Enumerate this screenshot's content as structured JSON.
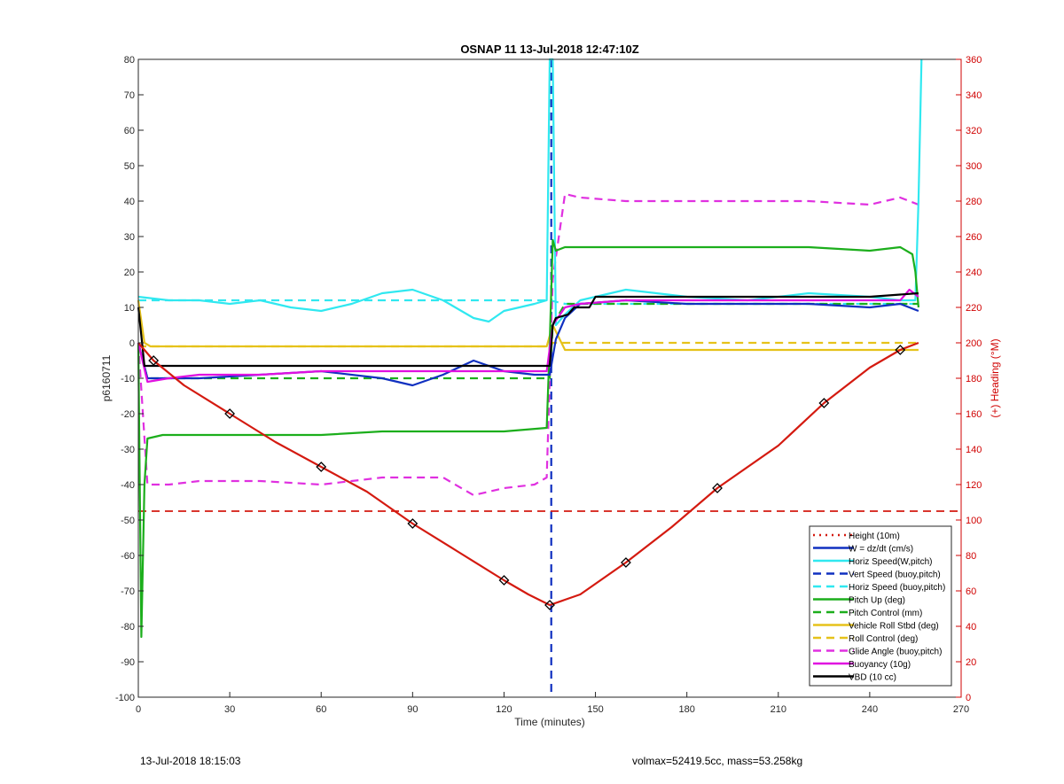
{
  "footer": {
    "left": "13-Jul-2018 18:15:03",
    "right": "volmax=52419.5cc, mass=53.258kg"
  },
  "colors": {
    "axis_left": "#000000",
    "axis_right": "#d00000",
    "height": "#d41a10",
    "w": "#1030c0",
    "horiz": "#30e8f0",
    "pitch": "#1cae1c",
    "roll": "#e6c21a",
    "glide": "#e030e0",
    "buoy": "#e010e0",
    "vbd": "#000000"
  },
  "chart_data": {
    "type": "line",
    "title": "OSNAP 11 13-Jul-2018 12:47:10Z",
    "xlabel": "Time (minutes)",
    "ylabel": "p6160711",
    "y2label": "(+) Heading (°M)",
    "xlim": [
      0,
      270
    ],
    "ylim": [
      -100,
      80
    ],
    "y2lim": [
      0,
      360
    ],
    "xticks": [
      0,
      30,
      60,
      90,
      120,
      150,
      180,
      210,
      240,
      270
    ],
    "yticks": [
      -100,
      -90,
      -80,
      -70,
      -60,
      -50,
      -40,
      -30,
      -20,
      -10,
      0,
      10,
      20,
      30,
      40,
      50,
      60,
      70,
      80
    ],
    "y2ticks": [
      0,
      20,
      40,
      60,
      80,
      100,
      120,
      140,
      160,
      180,
      200,
      220,
      240,
      260,
      280,
      300,
      320,
      340,
      360
    ],
    "grid": false,
    "legend_position": "bottom-right",
    "reference_lines": [
      {
        "orientation": "vertical",
        "x": 135.5,
        "style": "dashed",
        "color_key": "w"
      },
      {
        "orientation": "horizontal",
        "y": -47.5,
        "style": "dashed",
        "color_key": "height"
      }
    ],
    "series": [
      {
        "name": "Height (10m)",
        "style": "line-dots",
        "color_key": "height",
        "x": [
          0,
          5,
          15,
          30,
          45,
          60,
          75,
          90,
          105,
          120,
          128,
          135,
          145,
          160,
          175,
          190,
          210,
          225,
          240,
          250,
          256
        ],
        "y": [
          0,
          -5,
          -12,
          -20,
          -28,
          -35,
          -42,
          -51,
          -59,
          -67,
          -71,
          -74,
          -71,
          -62,
          -52,
          -41,
          -29,
          -17,
          -7,
          -2,
          0
        ]
      },
      {
        "name": "W = dz/dt (cm/s)",
        "style": "solid",
        "color_key": "w",
        "x": [
          0,
          3,
          10,
          20,
          40,
          60,
          80,
          90,
          100,
          110,
          120,
          130,
          135,
          137,
          140,
          145,
          160,
          180,
          200,
          220,
          240,
          250,
          256
        ],
        "y": [
          0,
          -10,
          -10,
          -10,
          -9,
          -8,
          -10,
          -12,
          -9,
          -5,
          -8,
          -9,
          -9,
          1,
          7,
          11,
          12,
          11,
          11,
          11,
          10,
          11,
          9
        ]
      },
      {
        "name": "Horiz Speed(W,pitch)",
        "style": "solid",
        "color_key": "horiz",
        "x": [
          0,
          10,
          20,
          30,
          40,
          50,
          60,
          70,
          80,
          90,
          100,
          110,
          115,
          120,
          125,
          130,
          134,
          135,
          136,
          137,
          140,
          145,
          160,
          180,
          200,
          220,
          240,
          250,
          255,
          256,
          257
        ],
        "y": [
          13,
          12,
          12,
          11,
          12,
          10,
          9,
          11,
          14,
          15,
          12,
          7,
          6,
          9,
          10,
          11,
          12,
          80,
          80,
          5,
          8,
          12,
          15,
          13,
          12,
          14,
          13,
          12,
          12,
          40,
          80
        ]
      },
      {
        "name": "Vert Speed (buoy,pitch)",
        "style": "dashed",
        "color_key": "w",
        "x": [
          135.5,
          135.5
        ],
        "y": [
          -100,
          80
        ]
      },
      {
        "name": "Horiz Speed (buoy,pitch)",
        "style": "dashed",
        "color_key": "horiz",
        "x": [
          0,
          135,
          140,
          255
        ],
        "y": [
          12,
          12,
          11,
          11
        ]
      },
      {
        "name": "Pitch Up (deg)",
        "style": "solid",
        "color_key": "pitch",
        "x": [
          0,
          1,
          2,
          3,
          8,
          20,
          40,
          60,
          80,
          100,
          120,
          134,
          135,
          136,
          137,
          140,
          160,
          180,
          200,
          220,
          240,
          250,
          254,
          255,
          256
        ],
        "y": [
          0,
          -83,
          -40,
          -27,
          -26,
          -26,
          -26,
          -26,
          -25,
          -25,
          -25,
          -24,
          0,
          29,
          26,
          27,
          27,
          27,
          27,
          27,
          26,
          27,
          25,
          20,
          10
        ]
      },
      {
        "name": "Pitch Control (mm)",
        "style": "dashed",
        "color_key": "pitch",
        "x": [
          0,
          3,
          135,
          136,
          140,
          256
        ],
        "y": [
          0,
          -10,
          -10,
          5,
          11,
          11
        ]
      },
      {
        "name": "Vehicle Roll Stbd (deg)",
        "style": "solid",
        "color_key": "roll",
        "x": [
          0,
          2,
          4,
          10,
          20,
          40,
          60,
          80,
          100,
          120,
          134,
          136,
          140,
          160,
          180,
          200,
          220,
          240,
          256
        ],
        "y": [
          12,
          0,
          -1,
          -1,
          -1,
          -1,
          -1,
          -1,
          -1,
          -1,
          -1,
          5,
          -2,
          -2,
          -2,
          -2,
          -2,
          -2,
          -2
        ]
      },
      {
        "name": "Roll Control (deg)",
        "style": "dashed",
        "color_key": "roll",
        "x": [
          0,
          135,
          136,
          256
        ],
        "y": [
          -1,
          -1,
          0,
          0
        ]
      },
      {
        "name": "Glide Angle (buoy,pitch)",
        "style": "dashed",
        "color_key": "glide",
        "x": [
          0,
          3,
          10,
          20,
          40,
          60,
          80,
          90,
          100,
          110,
          120,
          130,
          134,
          136,
          140,
          145,
          160,
          180,
          200,
          220,
          240,
          250,
          256
        ],
        "y": [
          0,
          -40,
          -40,
          -39,
          -39,
          -40,
          -38,
          -38,
          -38,
          -43,
          -41,
          -40,
          -38,
          18,
          42,
          41,
          40,
          40,
          40,
          40,
          39,
          41,
          39
        ]
      },
      {
        "name": "Buoyancy (10g)",
        "style": "solid",
        "color_key": "buoy",
        "x": [
          0,
          3,
          10,
          20,
          40,
          60,
          80,
          100,
          120,
          134,
          136,
          140,
          145,
          160,
          180,
          200,
          220,
          240,
          250,
          253,
          256
        ],
        "y": [
          0,
          -11,
          -10,
          -9,
          -9,
          -8,
          -8,
          -8,
          -8,
          -8,
          5,
          10,
          11,
          12,
          12,
          12,
          12,
          12,
          12,
          15,
          13
        ]
      },
      {
        "name": "VBD (10 cc)",
        "style": "solid",
        "color_key": "vbd",
        "x": [
          0,
          1,
          2,
          135,
          136,
          137,
          141,
          143,
          148,
          150,
          170,
          200,
          220,
          240,
          256
        ],
        "y": [
          10,
          2,
          -6.5,
          -6.5,
          5,
          7,
          8,
          10,
          10,
          13,
          13,
          13,
          13,
          13,
          14
        ]
      }
    ]
  }
}
